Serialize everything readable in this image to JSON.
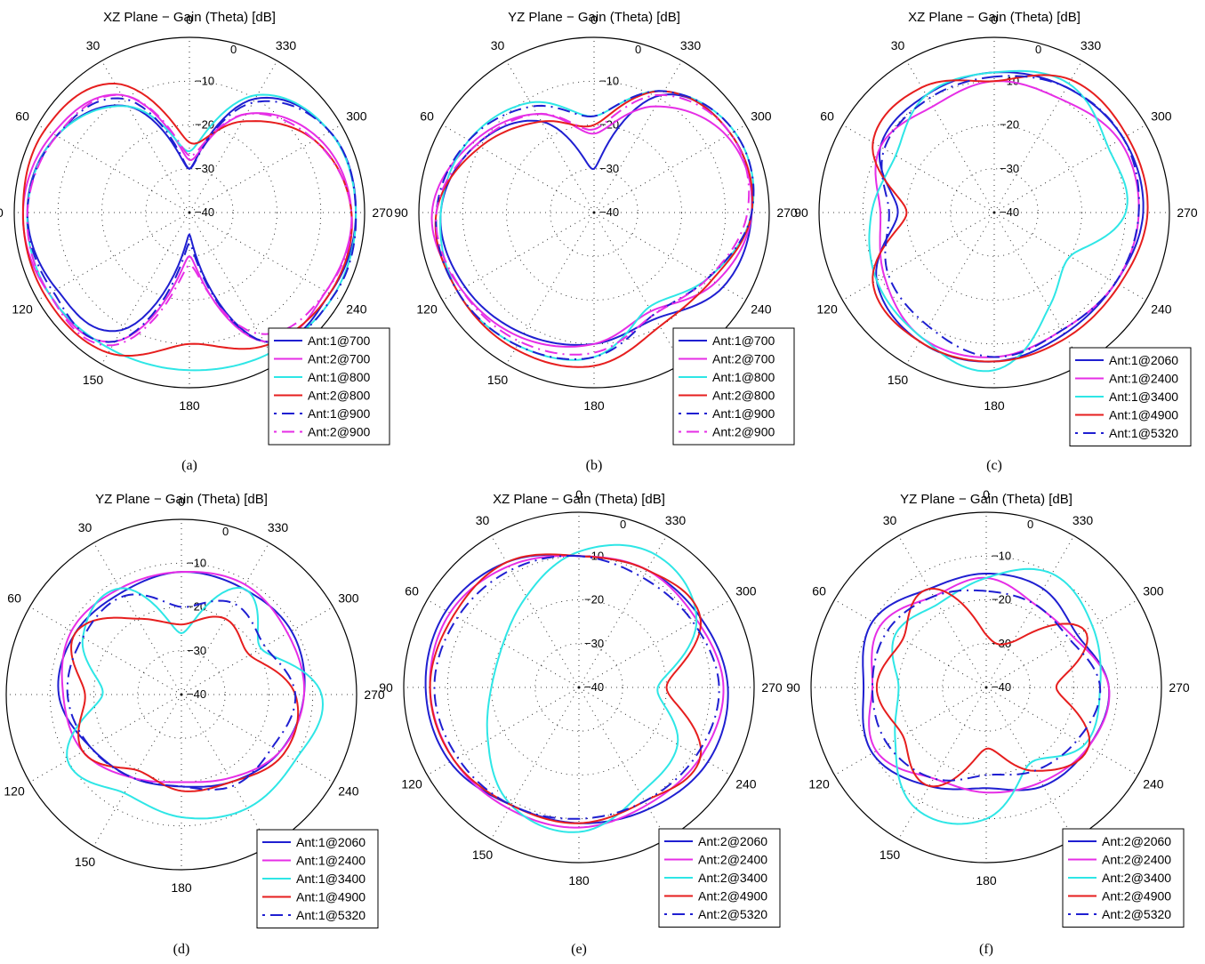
{
  "charts": [
    {
      "title": "XZ Plane − Gain (Theta) [dB]",
      "caption": "(a)",
      "legend": [
        "Ant:1@700",
        "Ant:2@700",
        "Ant:1@800",
        "Ant:2@800",
        "Ant:1@900",
        "Ant:2@900"
      ]
    },
    {
      "title": "YZ Plane − Gain (Theta) [dB]",
      "caption": "(b)",
      "legend": [
        "Ant:1@700",
        "Ant:2@700",
        "Ant:1@800",
        "Ant:2@800",
        "Ant:1@900",
        "Ant:2@900"
      ]
    },
    {
      "title": "XZ Plane − Gain (Theta) [dB]",
      "caption": "(c)",
      "legend": [
        "Ant:1@2060",
        "Ant:1@2400",
        "Ant:1@3400",
        "Ant:1@4900",
        "Ant:1@5320"
      ]
    },
    {
      "title": "YZ Plane − Gain (Theta) [dB]",
      "caption": "(d)",
      "legend": [
        "Ant:1@2060",
        "Ant:1@2400",
        "Ant:1@3400",
        "Ant:1@4900",
        "Ant:1@5320"
      ]
    },
    {
      "title": "XZ Plane − Gain (Theta) [dB]",
      "caption": "(e)",
      "legend": [
        "Ant:2@2060",
        "Ant:2@2400",
        "Ant:2@3400",
        "Ant:2@4900",
        "Ant:2@5320"
      ]
    },
    {
      "title": "YZ Plane − Gain (Theta) [dB]",
      "caption": "(f)",
      "legend": [
        "Ant:2@2060",
        "Ant:2@2400",
        "Ant:2@3400",
        "Ant:2@4900",
        "Ant:2@5320"
      ]
    }
  ],
  "chart_data": [
    {
      "type": "polar-line",
      "title": "XZ Plane − Gain (Theta) [dB]",
      "angle_labels": [
        "0",
        "30",
        "60",
        "90",
        "120",
        "150",
        "180",
        "210",
        "240",
        "270",
        "300",
        "330"
      ],
      "radial_labels": [
        "0",
        "−10",
        "−20",
        "−30",
        "−40"
      ],
      "rlim_db": [
        -40,
        0
      ],
      "angles_deg": [
        0,
        30,
        60,
        90,
        120,
        150,
        180,
        210,
        240,
        270,
        300,
        330
      ],
      "series": [
        {
          "name": "Ant:1@700",
          "color": "#1f1fd1",
          "style": "solid",
          "values_db": [
            -30,
            -12,
            -5,
            -3,
            -5,
            -9,
            -35,
            -6,
            -3,
            -2,
            -3,
            -10
          ]
        },
        {
          "name": "Ant:2@700",
          "color": "#e62ee6",
          "style": "solid",
          "values_db": [
            -28,
            -9,
            -4,
            -2,
            -3,
            -6,
            -30,
            -6,
            -4,
            -3,
            -6,
            -14
          ]
        },
        {
          "name": "Ant:1@800",
          "color": "#2ee6e6",
          "style": "solid",
          "values_db": [
            -26,
            -12,
            -5,
            -3,
            -3,
            -4,
            -4,
            -3,
            -2,
            -2,
            -3,
            -9
          ]
        },
        {
          "name": "Ant:2@800",
          "color": "#e61e1e",
          "style": "solid",
          "values_db": [
            -24,
            -6,
            -2,
            -2,
            -2,
            -3,
            -10,
            -5,
            -3,
            -3,
            -7,
            -16
          ]
        },
        {
          "name": "Ant:1@900",
          "color": "#1f1fd1",
          "style": "dash-dot",
          "values_db": [
            -30,
            -10,
            -5,
            -3,
            -4,
            -6,
            -33,
            -6,
            -2,
            -2,
            -3,
            -11
          ]
        },
        {
          "name": "Ant:2@900",
          "color": "#e62ee6",
          "style": "dash-dot",
          "values_db": [
            -27,
            -9,
            -5,
            -3,
            -3,
            -5,
            -28,
            -8,
            -4,
            -3,
            -7,
            -14
          ]
        }
      ]
    },
    {
      "type": "polar-line",
      "title": "YZ Plane − Gain (Theta) [dB]",
      "angle_labels": [
        "0",
        "30",
        "60",
        "90",
        "120",
        "150",
        "180",
        "210",
        "240",
        "270",
        "300",
        "330"
      ],
      "radial_labels": [
        "0",
        "−10",
        "−20",
        "−30",
        "−40"
      ],
      "rlim_db": [
        -40,
        0
      ],
      "angles_deg": [
        0,
        30,
        60,
        90,
        120,
        150,
        180,
        210,
        240,
        270,
        300,
        330
      ],
      "series": [
        {
          "name": "Ant:1@700",
          "color": "#1f1fd1",
          "style": "solid",
          "values_db": [
            -30,
            -16,
            -9,
            -5,
            -6,
            -8,
            -10,
            -12,
            -6,
            -4,
            -4,
            -9
          ]
        },
        {
          "name": "Ant:2@700",
          "color": "#e62ee6",
          "style": "solid",
          "values_db": [
            -22,
            -14,
            -8,
            -3,
            -5,
            -7,
            -10,
            -14,
            -8,
            -4,
            -5,
            -12
          ]
        },
        {
          "name": "Ant:1@800",
          "color": "#2ee6e6",
          "style": "solid",
          "values_db": [
            -18,
            -11,
            -7,
            -5,
            -4,
            -5,
            -7,
            -15,
            -10,
            -4,
            -3,
            -8
          ]
        },
        {
          "name": "Ant:2@800",
          "color": "#e61e1e",
          "style": "solid",
          "values_db": [
            -20,
            -16,
            -10,
            -4,
            -4,
            -4,
            -5,
            -10,
            -9,
            -4,
            -4,
            -8
          ]
        },
        {
          "name": "Ant:1@900",
          "color": "#1f1fd1",
          "style": "dash-dot",
          "values_db": [
            -18,
            -12,
            -7,
            -4,
            -4,
            -5,
            -7,
            -13,
            -10,
            -4,
            -3,
            -8
          ]
        },
        {
          "name": "Ant:2@900",
          "color": "#e62ee6",
          "style": "dash-dot",
          "values_db": [
            -21,
            -14,
            -9,
            -4,
            -5,
            -6,
            -8,
            -13,
            -10,
            -5,
            -4,
            -9
          ]
        }
      ]
    },
    {
      "type": "polar-line",
      "title": "XZ Plane − Gain (Theta) [dB]",
      "angle_labels": [
        "0",
        "30",
        "60",
        "90",
        "120",
        "150",
        "180",
        "210",
        "240",
        "270",
        "300",
        "330"
      ],
      "radial_labels": [
        "0",
        "−10",
        "−20",
        "−30",
        "−40"
      ],
      "rlim_db": [
        -40,
        0
      ],
      "angles_deg": [
        0,
        30,
        60,
        90,
        120,
        150,
        180,
        210,
        240,
        270,
        300,
        330
      ],
      "series": [
        {
          "name": "Ant:1@2060",
          "color": "#1f1fd1",
          "style": "solid",
          "values_db": [
            -8,
            -9,
            -10,
            -18,
            -9,
            -6,
            -6,
            -8,
            -8,
            -6,
            -6,
            -7
          ]
        },
        {
          "name": "Ant:1@2400",
          "color": "#e62ee6",
          "style": "solid",
          "values_db": [
            -10,
            -12,
            -10,
            -14,
            -11,
            -7,
            -7,
            -9,
            -8,
            -7,
            -7,
            -10
          ]
        },
        {
          "name": "Ant:1@3400",
          "color": "#2ee6e6",
          "style": "solid",
          "values_db": [
            -8,
            -9,
            -14,
            -12,
            -9,
            -7,
            -4,
            -15,
            -20,
            -10,
            -10,
            -6
          ]
        },
        {
          "name": "Ant:1@4900",
          "color": "#e61e1e",
          "style": "solid",
          "values_db": [
            -10,
            -7,
            -8,
            -20,
            -8,
            -6,
            -6,
            -7,
            -7,
            -5,
            -5,
            -5
          ]
        },
        {
          "name": "Ant:1@5320",
          "color": "#1f1fd1",
          "style": "dash-dot",
          "values_db": [
            -9,
            -10,
            -11,
            -16,
            -12,
            -10,
            -7,
            -9,
            -8,
            -7,
            -6,
            -7
          ]
        }
      ]
    },
    {
      "type": "polar-line",
      "title": "YZ Plane − Gain (Theta) [dB]",
      "angle_labels": [
        "0",
        "30",
        "60",
        "90",
        "120",
        "150",
        "180",
        "210",
        "240",
        "270",
        "300",
        "330"
      ],
      "radial_labels": [
        "0",
        "−10",
        "−20",
        "−30",
        "−40"
      ],
      "rlim_db": [
        -40,
        0
      ],
      "angles_deg": [
        0,
        30,
        60,
        90,
        120,
        150,
        180,
        210,
        240,
        270,
        300,
        330
      ],
      "series": [
        {
          "name": "Ant:1@2060",
          "color": "#1f1fd1",
          "style": "solid",
          "values_db": [
            -12,
            -13,
            -12,
            -12,
            -16,
            -18,
            -19,
            -17,
            -14,
            -12,
            -11,
            -12
          ]
        },
        {
          "name": "Ant:1@2400",
          "color": "#e62ee6",
          "style": "solid",
          "values_db": [
            -12,
            -12,
            -11,
            -13,
            -14,
            -18,
            -20,
            -18,
            -14,
            -12,
            -12,
            -11
          ]
        },
        {
          "name": "Ant:1@3400",
          "color": "#2ee6e6",
          "style": "solid",
          "values_db": [
            -26,
            -12,
            -14,
            -22,
            -10,
            -14,
            -12,
            -10,
            -10,
            -8,
            -19,
            -12
          ]
        },
        {
          "name": "Ant:1@4900",
          "color": "#e61e1e",
          "style": "solid",
          "values_db": [
            -24,
            -20,
            -12,
            -18,
            -14,
            -20,
            -18,
            -17,
            -13,
            -14,
            -22,
            -20
          ]
        },
        {
          "name": "Ant:1@5320",
          "color": "#1f1fd1",
          "style": "dash-dot",
          "values_db": [
            -20,
            -14,
            -14,
            -14,
            -16,
            -18,
            -19,
            -16,
            -16,
            -14,
            -18,
            -16
          ]
        }
      ]
    },
    {
      "type": "polar-line",
      "title": "XZ Plane − Gain (Theta) [dB]",
      "angle_labels": [
        "0",
        "30",
        "60",
        "90",
        "120",
        "150",
        "180",
        "210",
        "240",
        "270",
        "300",
        "330"
      ],
      "radial_labels": [
        "0",
        "−10",
        "−20",
        "−30",
        "−40"
      ],
      "rlim_db": [
        -40,
        0
      ],
      "angles_deg": [
        0,
        30,
        60,
        90,
        120,
        150,
        180,
        210,
        240,
        270,
        300,
        330
      ],
      "series": [
        {
          "name": "Ant:2@2060",
          "color": "#1f1fd1",
          "style": "solid",
          "values_db": [
            -10,
            -7,
            -5,
            -5,
            -6,
            -9,
            -9,
            -8,
            -6,
            -6,
            -8,
            -9
          ]
        },
        {
          "name": "Ant:2@2400",
          "color": "#e62ee6",
          "style": "solid",
          "values_db": [
            -10,
            -8,
            -6,
            -6,
            -7,
            -8,
            -8,
            -9,
            -8,
            -7,
            -9,
            -9
          ]
        },
        {
          "name": "Ant:2@3400",
          "color": "#2ee6e6",
          "style": "solid",
          "values_db": [
            -9,
            -16,
            -20,
            -20,
            -16,
            -9,
            -7,
            -12,
            -14,
            -22,
            -9,
            -5
          ]
        },
        {
          "name": "Ant:2@4900",
          "color": "#e61e1e",
          "style": "solid",
          "values_db": [
            -10,
            -7,
            -7,
            -6,
            -7,
            -9,
            -9,
            -10,
            -8,
            -20,
            -8,
            -9
          ]
        },
        {
          "name": "Ant:2@5320",
          "color": "#1f1fd1",
          "style": "dash-dot",
          "values_db": [
            -10,
            -9,
            -8,
            -7,
            -8,
            -9,
            -10,
            -10,
            -9,
            -8,
            -10,
            -11
          ]
        }
      ]
    },
    {
      "type": "polar-line",
      "title": "YZ Plane − Gain (Theta) [dB]",
      "angle_labels": [
        "0",
        "30",
        "60",
        "90",
        "120",
        "150",
        "180",
        "210",
        "240",
        "270",
        "300",
        "330"
      ],
      "radial_labels": [
        "0",
        "−10",
        "−20",
        "−30",
        "−40"
      ],
      "rlim_db": [
        -40,
        0
      ],
      "angles_deg": [
        0,
        30,
        60,
        90,
        120,
        150,
        180,
        210,
        240,
        270,
        300,
        330
      ],
      "series": [
        {
          "name": "Ant:2@2060",
          "color": "#1f1fd1",
          "style": "solid",
          "values_db": [
            -14,
            -14,
            -10,
            -12,
            -10,
            -14,
            -17,
            -14,
            -13,
            -12,
            -16,
            -14
          ]
        },
        {
          "name": "Ant:2@2400",
          "color": "#e62ee6",
          "style": "solid",
          "values_db": [
            -15,
            -16,
            -12,
            -14,
            -11,
            -16,
            -16,
            -15,
            -13,
            -12,
            -17,
            -18
          ]
        },
        {
          "name": "Ant:2@3400",
          "color": "#2ee6e6",
          "style": "solid",
          "values_db": [
            -15,
            -18,
            -16,
            -20,
            -16,
            -8,
            -10,
            -20,
            -14,
            -14,
            -12,
            -10
          ]
        },
        {
          "name": "Ant:2@4900",
          "color": "#e61e1e",
          "style": "solid",
          "values_db": [
            -28,
            -14,
            -18,
            -15,
            -18,
            -14,
            -26,
            -18,
            -13,
            -24,
            -14,
            -28
          ]
        },
        {
          "name": "Ant:2@5320",
          "color": "#1f1fd1",
          "style": "dash-dot",
          "values_db": [
            -18,
            -16,
            -14,
            -14,
            -14,
            -16,
            -20,
            -18,
            -16,
            -14,
            -18,
            -18
          ]
        }
      ]
    }
  ]
}
